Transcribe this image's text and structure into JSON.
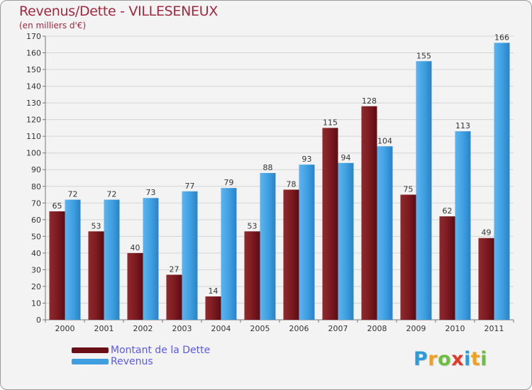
{
  "title": "Revenus/Dette - VILLESENEUX",
  "subtitle": "(en milliers d'€)",
  "logo": {
    "parts": [
      "P",
      "r",
      "o",
      "x",
      "i",
      "t",
      "i"
    ],
    "colors": [
      "#2e9ad6",
      "#f0a020",
      "#6cbf3c",
      "#e03a2a",
      "#2e9ad6",
      "#f0a020",
      "#6cbf3c"
    ]
  },
  "colors": {
    "dette": "#7a1a20",
    "revenus": "#3e9ee0",
    "title": "#a0293f",
    "legend_text": "#5b58f0"
  },
  "chart_data": {
    "type": "bar",
    "title": "Revenus/Dette - VILLESENEUX",
    "ylabel": "(en milliers d'€)",
    "xlabel": "",
    "ylim": [
      0,
      170
    ],
    "yticks": [
      0,
      10,
      20,
      30,
      40,
      50,
      60,
      70,
      80,
      90,
      100,
      110,
      120,
      130,
      140,
      150,
      160,
      170
    ],
    "grid": true,
    "legend_position": "bottom-left",
    "categories": [
      "2000",
      "2001",
      "2002",
      "2003",
      "2004",
      "2005",
      "2006",
      "2007",
      "2008",
      "2009",
      "2010",
      "2011"
    ],
    "series": [
      {
        "name": "Montant de la Dette",
        "values": [
          65,
          53,
          40,
          27,
          14,
          53,
          78,
          115,
          128,
          75,
          62,
          49
        ]
      },
      {
        "name": "Revenus",
        "values": [
          72,
          72,
          73,
          77,
          79,
          88,
          93,
          94,
          104,
          155,
          113,
          166
        ]
      }
    ]
  }
}
